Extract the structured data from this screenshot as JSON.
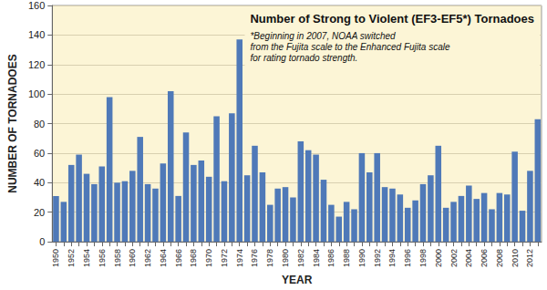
{
  "chart_data": {
    "type": "bar",
    "title": "Number of Strong to Violent (EF3-EF5*) Tornadoes",
    "subtitle": "*Beginning in 2007, NOAA switched\nfrom the Fujita scale to the Enhanced Fujita scale\nfor rating tornado strength.",
    "x_label": "YEAR",
    "y_label": "NUMBER OF TORNADOES",
    "categories": [
      "1950",
      null,
      "1952",
      null,
      "1954",
      null,
      "1956",
      null,
      "1958",
      null,
      "1960",
      null,
      "1962",
      null,
      "1964",
      null,
      "1966",
      null,
      "1968",
      null,
      "1970",
      null,
      "1972",
      null,
      "1974",
      null,
      "1976",
      null,
      "1978",
      null,
      "1980",
      null,
      "1982",
      null,
      "1984",
      null,
      "1986",
      null,
      "1988",
      null,
      "1990",
      null,
      "1992",
      null,
      "1994",
      null,
      "1996",
      null,
      "1998",
      null,
      "2000",
      null,
      "2002",
      null,
      "2004",
      null,
      "2006",
      null,
      "2008",
      null,
      "2010",
      null,
      "2012",
      null
    ],
    "values": [
      31,
      27,
      52,
      59,
      46,
      39,
      51,
      98,
      40,
      41,
      48,
      71,
      39,
      36,
      53,
      102,
      31,
      74,
      52,
      55,
      44,
      85,
      41,
      87,
      137,
      45,
      65,
      47,
      25,
      36,
      37,
      30,
      68,
      62,
      59,
      42,
      25,
      17,
      27,
      22,
      60,
      47,
      60,
      37,
      36,
      32,
      23,
      28,
      39,
      45,
      65,
      23,
      27,
      31,
      38,
      29,
      33,
      22,
      33,
      32,
      61,
      21,
      48,
      83
    ],
    "color": "#4f79b8",
    "ylim": [
      0,
      160
    ],
    "yticks": [
      0,
      20,
      40,
      60,
      80,
      100,
      120,
      140,
      160
    ],
    "grid": true
  }
}
